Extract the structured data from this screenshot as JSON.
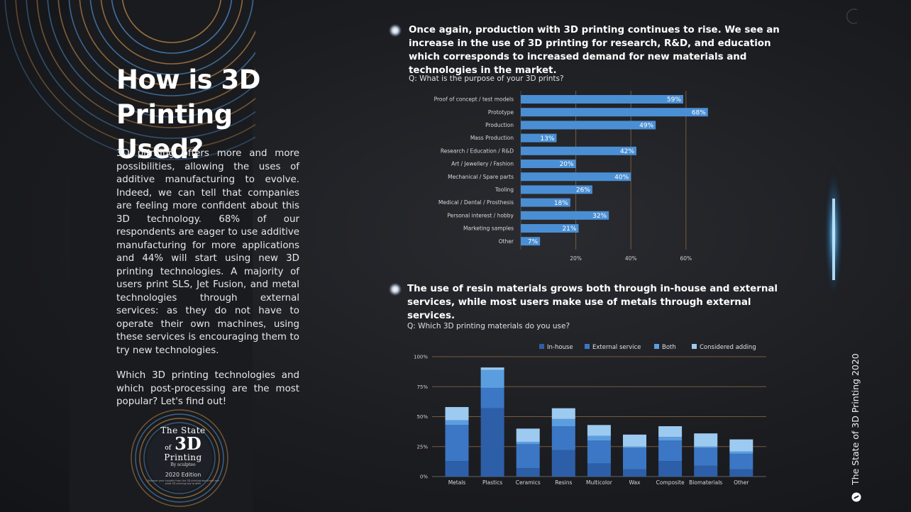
{
  "intro": {
    "title_line1": "How is 3D",
    "title_line2": "Printing Used?",
    "paragraph1": "3D printing offers more and more possibilities, allowing the uses of additive manufacturing to evolve. Indeed, we can tell that companies are feeling more confident about this 3D technology. 68% of our respondents are eager to use additive manufacturing for more applications and 44% will start using new 3D printing technologies. A majority of users print SLS, Jet Fusion, and metal technologies through external services: as they do not have to operate their own machines, using these services is encouraging them to try new technologies.",
    "paragraph2": "Which 3D printing technologies and which post-processing are the most popular? Let's find out!"
  },
  "cover": {
    "line1": "The State",
    "of": "of",
    "line2": "3D",
    "line3": "Printing",
    "by": "By sculpteo",
    "edition": "2020 Edition",
    "fine_print": "Discover your insights from the 3D printing world and see what 3D printing has to offer"
  },
  "section1": {
    "heading": "Once again, production with 3D printing continues to rise. We see an increase in the use of 3D printing for research, R&D, and education which corresponds to increased demand for new materials and technologies in the market.",
    "question": "Q: What is the purpose of your 3D prints?"
  },
  "section2": {
    "heading": "The use of resin materials grows both through in-house and external services, while most users make use of metals through external services.",
    "question": "Q: Which 3D printing materials do you use?"
  },
  "side": {
    "title": "The State of 3D Printing 2020"
  },
  "colors": {
    "bar": "#4a8fd4",
    "in_house": "#2d5fa8",
    "external": "#3b77c4",
    "both": "#5b9ee0",
    "considered": "#9ccaf0",
    "grid": "#8a6a44"
  },
  "chart_data": [
    {
      "type": "bar",
      "orientation": "horizontal",
      "categories": [
        "Proof of concept / test models",
        "Prototype",
        "Production",
        "Mass Production",
        "Research / Education / R&D",
        "Art / Jewellery / Fashion",
        "Mechanical / Spare parts",
        "Tooling",
        "Medical / Dental / Prosthesis",
        "Personal interest / hobby",
        "Marketing samples",
        "Other"
      ],
      "values": [
        59,
        68,
        49,
        13,
        42,
        20,
        40,
        26,
        18,
        32,
        21,
        7
      ],
      "value_labels": [
        "59%",
        "68%",
        "49%",
        "13%",
        "42%",
        "20%",
        "40%",
        "26%",
        "18%",
        "32%",
        "21%",
        "7%"
      ],
      "xlim": [
        0,
        70
      ],
      "xticks": [
        20,
        40,
        60
      ],
      "xtick_labels": [
        "20%",
        "40%",
        "60%"
      ],
      "grid": true
    },
    {
      "type": "bar",
      "stacked": true,
      "categories": [
        "Metals",
        "Plastics",
        "Ceramics",
        "Resins",
        "Multicolor",
        "Wax",
        "Composite",
        "Biomaterials",
        "Other"
      ],
      "series": [
        {
          "name": "In-house",
          "values": [
            13,
            57,
            7,
            22,
            11,
            6,
            13,
            9,
            6
          ]
        },
        {
          "name": "External service",
          "values": [
            30,
            17,
            20,
            20,
            19,
            18,
            17,
            15,
            13
          ]
        },
        {
          "name": "Both",
          "values": [
            4,
            15,
            2,
            6,
            4,
            1,
            3,
            1,
            2
          ]
        },
        {
          "name": "Considered adding",
          "values": [
            11,
            2,
            11,
            9,
            9,
            10,
            9,
            11,
            10
          ]
        }
      ],
      "ylim": [
        0,
        100
      ],
      "yticks": [
        0,
        25,
        50,
        75,
        100
      ],
      "ytick_labels": [
        "0%",
        "25%",
        "50%",
        "75%",
        "100%"
      ],
      "legend": "top-right",
      "grid": true
    }
  ]
}
